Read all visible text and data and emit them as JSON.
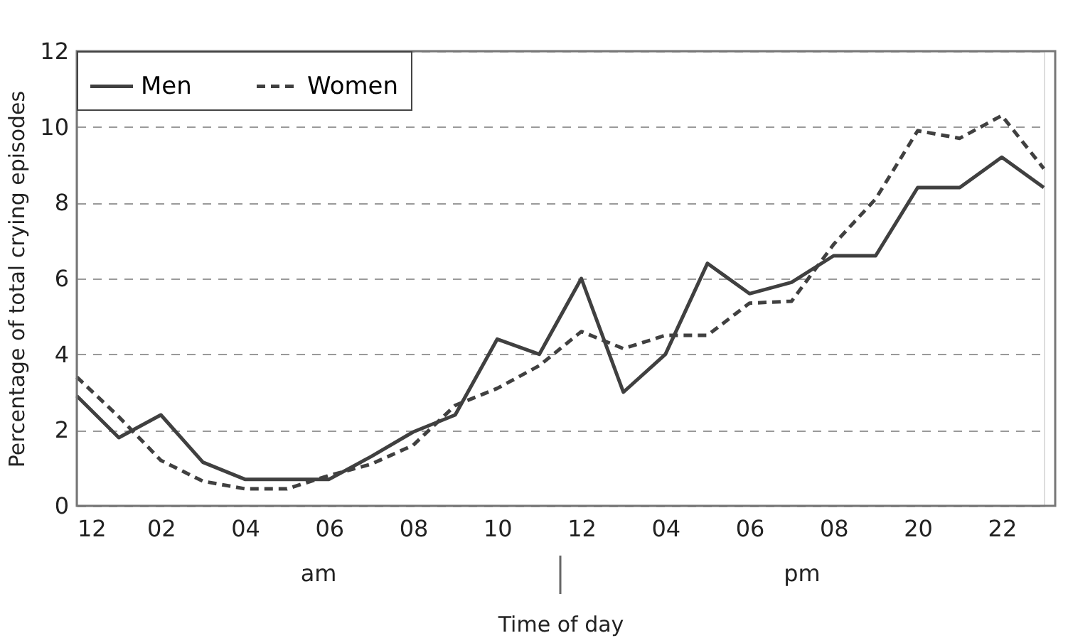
{
  "chart_data": {
    "type": "line",
    "xlabel": "Time of day",
    "ylabel": "Percentage of total crying episodes",
    "categories": [
      "12",
      null,
      "02",
      null,
      "04",
      null,
      "06",
      null,
      "08",
      null,
      "10",
      null,
      "12",
      null,
      "04",
      null,
      "06",
      null,
      "08",
      null,
      "20",
      null,
      "22",
      null
    ],
    "series": [
      {
        "name": "Men",
        "color": "#404040",
        "line_style": "solid",
        "values": [
          2.9,
          1.8,
          2.4,
          1.15,
          0.7,
          0.7,
          0.7,
          1.3,
          1.95,
          2.4,
          4.4,
          4.0,
          6.0,
          3.0,
          4.0,
          6.4,
          5.6,
          5.9,
          6.6,
          6.6,
          8.4,
          8.4,
          9.2,
          8.4
        ]
      },
      {
        "name": "Women",
        "color": "#404040",
        "line_style": "dashed",
        "values": [
          3.4,
          2.35,
          1.2,
          0.65,
          0.45,
          0.45,
          0.8,
          1.1,
          1.6,
          2.65,
          3.1,
          3.7,
          4.6,
          4.15,
          4.5,
          4.5,
          5.35,
          5.4,
          6.9,
          8.1,
          9.9,
          9.7,
          10.3,
          8.9
        ]
      }
    ],
    "ylim": [
      0,
      12
    ],
    "yticks": [
      0,
      2,
      4,
      6,
      8,
      10,
      12
    ],
    "annotations": [
      "am",
      "pm"
    ],
    "grid": "y",
    "legend": "top left",
    "marker": "none"
  }
}
